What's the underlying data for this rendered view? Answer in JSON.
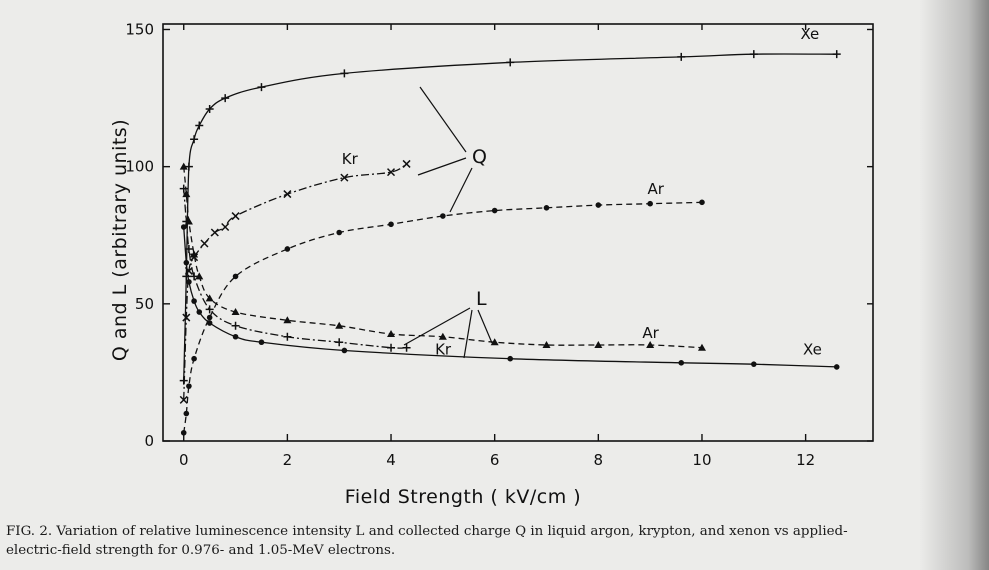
{
  "caption": {
    "line1": "FIG. 2.  Variation of relative luminescence intensity L and collected charge Q in liquid argon, krypton, and xenon vs applied-",
    "line2": "electric-field strength for 0.976- and 1.05-MeV electrons."
  },
  "callouts": {
    "q": "Q",
    "l": "L"
  },
  "chart_data": {
    "type": "line",
    "title": "",
    "xlabel": "Field Strength ( kV/cm )",
    "ylabel": "Q and L (arbitrary units)",
    "xlim": [
      -0.4,
      13.3
    ],
    "ylim": [
      0,
      152
    ],
    "xticks": [
      0,
      2,
      4,
      6,
      8,
      10,
      12
    ],
    "yticks": [
      0,
      50,
      100,
      150
    ],
    "grid": false,
    "legend": "none",
    "series": [
      {
        "name": "Xe",
        "quantity": "Q",
        "dash": "solid",
        "marker": "plus",
        "x": [
          0,
          0.05,
          0.1,
          0.2,
          0.3,
          0.5,
          0.8,
          1.5,
          3.1,
          6.3,
          9.6,
          11.0,
          12.6
        ],
        "y": [
          22,
          60,
          100,
          110,
          115,
          121,
          125,
          129,
          134,
          138,
          140,
          141,
          141
        ],
        "labelX": 11.9,
        "labelY": 146.5
      },
      {
        "name": "Kr",
        "quantity": "Q",
        "dash": "dashdot",
        "marker": "x",
        "x": [
          0,
          0.05,
          0.1,
          0.2,
          0.4,
          0.6,
          0.8,
          1.0,
          2.0,
          3.1,
          4.0,
          4.3
        ],
        "y": [
          15,
          45,
          62,
          67,
          72,
          76,
          78,
          82,
          90,
          96,
          98,
          101
        ],
        "labelX": 3.05,
        "labelY": 101
      },
      {
        "name": "Ar",
        "quantity": "Q",
        "dash": "dashed",
        "marker": "dot",
        "x": [
          0,
          0.05,
          0.1,
          0.2,
          0.5,
          1.0,
          2.0,
          3.0,
          4.0,
          5.0,
          6.0,
          7.0,
          8.0,
          9.0,
          10.0
        ],
        "y": [
          3,
          10,
          20,
          30,
          45,
          60,
          70,
          76,
          79,
          82,
          84,
          85,
          86,
          86.5,
          87
        ],
        "labelX": 8.95,
        "labelY": 90
      },
      {
        "name": "Ar",
        "quantity": "L",
        "dash": "dashed",
        "marker": "triangle",
        "x": [
          0,
          0.05,
          0.1,
          0.2,
          0.3,
          0.5,
          1.0,
          2.0,
          3.0,
          4.0,
          5.0,
          6.0,
          7.0,
          8.0,
          9.0,
          10.0
        ],
        "y": [
          100,
          90,
          80,
          68,
          60,
          52,
          47,
          44,
          42,
          39,
          38,
          36,
          35,
          35,
          35,
          34
        ],
        "labelX": 8.85,
        "labelY": 37.5
      },
      {
        "name": "Kr",
        "quantity": "L",
        "dash": "dashdot",
        "marker": "plus",
        "x": [
          0,
          0.05,
          0.1,
          0.2,
          0.5,
          1.0,
          2.0,
          3.0,
          4.0,
          4.3
        ],
        "y": [
          92,
          80,
          70,
          60,
          48,
          42,
          38,
          36,
          34,
          34
        ],
        "labelX": 4.85,
        "labelY": 31.5
      },
      {
        "name": "Xe",
        "quantity": "L",
        "dash": "solid",
        "marker": "dot",
        "x": [
          0,
          0.05,
          0.1,
          0.2,
          0.3,
          0.5,
          1.0,
          1.5,
          3.1,
          6.3,
          9.6,
          11.0,
          12.6
        ],
        "y": [
          78,
          65,
          58,
          51,
          47,
          43,
          38,
          36,
          33,
          30,
          28.5,
          28,
          27
        ],
        "labelX": 11.95,
        "labelY": 31.5
      }
    ]
  }
}
